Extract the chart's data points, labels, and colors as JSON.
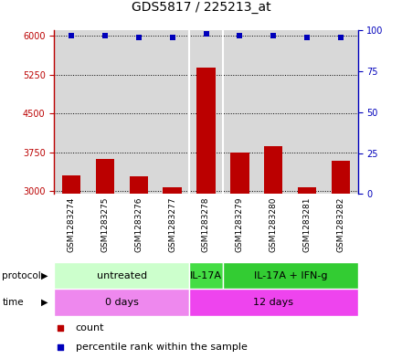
{
  "title": "GDS5817 / 225213_at",
  "samples": [
    "GSM1283274",
    "GSM1283275",
    "GSM1283276",
    "GSM1283277",
    "GSM1283278",
    "GSM1283279",
    "GSM1283280",
    "GSM1283281",
    "GSM1283282"
  ],
  "counts": [
    3300,
    3620,
    3280,
    3080,
    5380,
    3750,
    3870,
    3080,
    3590
  ],
  "percentile_ranks": [
    97,
    97,
    96,
    96,
    98,
    97,
    97,
    96,
    96
  ],
  "ylim_left": [
    2950,
    6100
  ],
  "ylim_right": [
    0,
    100
  ],
  "yticks_left": [
    3000,
    3750,
    4500,
    5250,
    6000
  ],
  "yticks_right": [
    0,
    25,
    50,
    75,
    100
  ],
  "bar_color": "#bb0000",
  "dot_color": "#0000bb",
  "protocol_groups": [
    {
      "label": "untreated",
      "start": 0,
      "end": 4,
      "color": "#ccffcc"
    },
    {
      "label": "IL-17A",
      "start": 4,
      "end": 5,
      "color": "#44dd44"
    },
    {
      "label": "IL-17A + IFN-g",
      "start": 5,
      "end": 9,
      "color": "#33cc33"
    }
  ],
  "time_groups": [
    {
      "label": "0 days",
      "start": 0,
      "end": 4,
      "color": "#ee88ee"
    },
    {
      "label": "12 days",
      "start": 4,
      "end": 9,
      "color": "#ee44ee"
    }
  ],
  "protocol_label": "protocol",
  "time_label": "time",
  "legend_count_label": "count",
  "legend_percentile_label": "percentile rank within the sample",
  "grid_color": "#000000",
  "background_color": "#ffffff",
  "plot_bg_color": "#d8d8d8",
  "title_fontsize": 10,
  "tick_fontsize": 7,
  "bar_width": 0.55
}
